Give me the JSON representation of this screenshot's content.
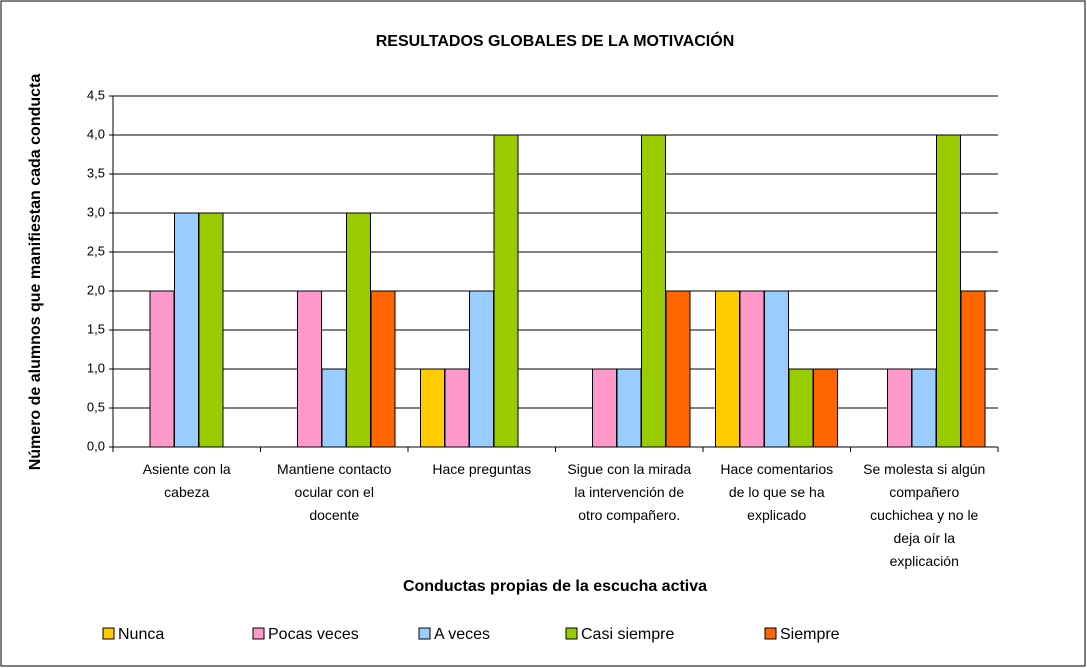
{
  "chart_data": {
    "type": "bar",
    "title": "RESULTADOS GLOBALES DE LA MOTIVACIÓN",
    "x_label": "Conductas propias de la escucha activa",
    "y_label": "Número de alumnos que manifiestan cada conducta",
    "categories": [
      "Asiente con la cabeza",
      "Mantiene contacto ocular con el docente",
      "Hace preguntas",
      "Sigue con la mirada la intervención de otro compañero.",
      "Hace comentarios de lo que se ha explicado",
      "Se molesta si algún compañero cuchichea y no le deja oír la explicación"
    ],
    "series": [
      {
        "name": "Nunca",
        "color": "#ffcc00",
        "values": [
          0,
          0,
          1,
          0,
          2,
          0
        ]
      },
      {
        "name": "Pocas veces",
        "color": "#ff99cc",
        "values": [
          2,
          2,
          1,
          1,
          2,
          1
        ]
      },
      {
        "name": "A veces",
        "color": "#99ccff",
        "values": [
          3,
          1,
          2,
          1,
          2,
          1
        ]
      },
      {
        "name": "Casi siempre",
        "color": "#99cc00",
        "values": [
          3,
          3,
          4,
          4,
          1,
          4
        ]
      },
      {
        "name": "Siempre",
        "color": "#ff6600",
        "values": [
          0,
          2,
          0,
          2,
          1,
          2
        ]
      }
    ],
    "ylim": [
      0,
      4.5
    ],
    "yticks": [
      {
        "value": 0,
        "label": "0,0"
      },
      {
        "value": 0.5,
        "label": "0,5"
      },
      {
        "value": 1,
        "label": "1,0"
      },
      {
        "value": 1.5,
        "label": "1,5"
      },
      {
        "value": 2,
        "label": "2,0"
      },
      {
        "value": 2.5,
        "label": "2,5"
      },
      {
        "value": 3,
        "label": "3,0"
      },
      {
        "value": 3.5,
        "label": "3,5"
      },
      {
        "value": 4,
        "label": "4,0"
      },
      {
        "value": 4.5,
        "label": "4,5"
      }
    ],
    "grid": true,
    "legend": "bottom"
  }
}
